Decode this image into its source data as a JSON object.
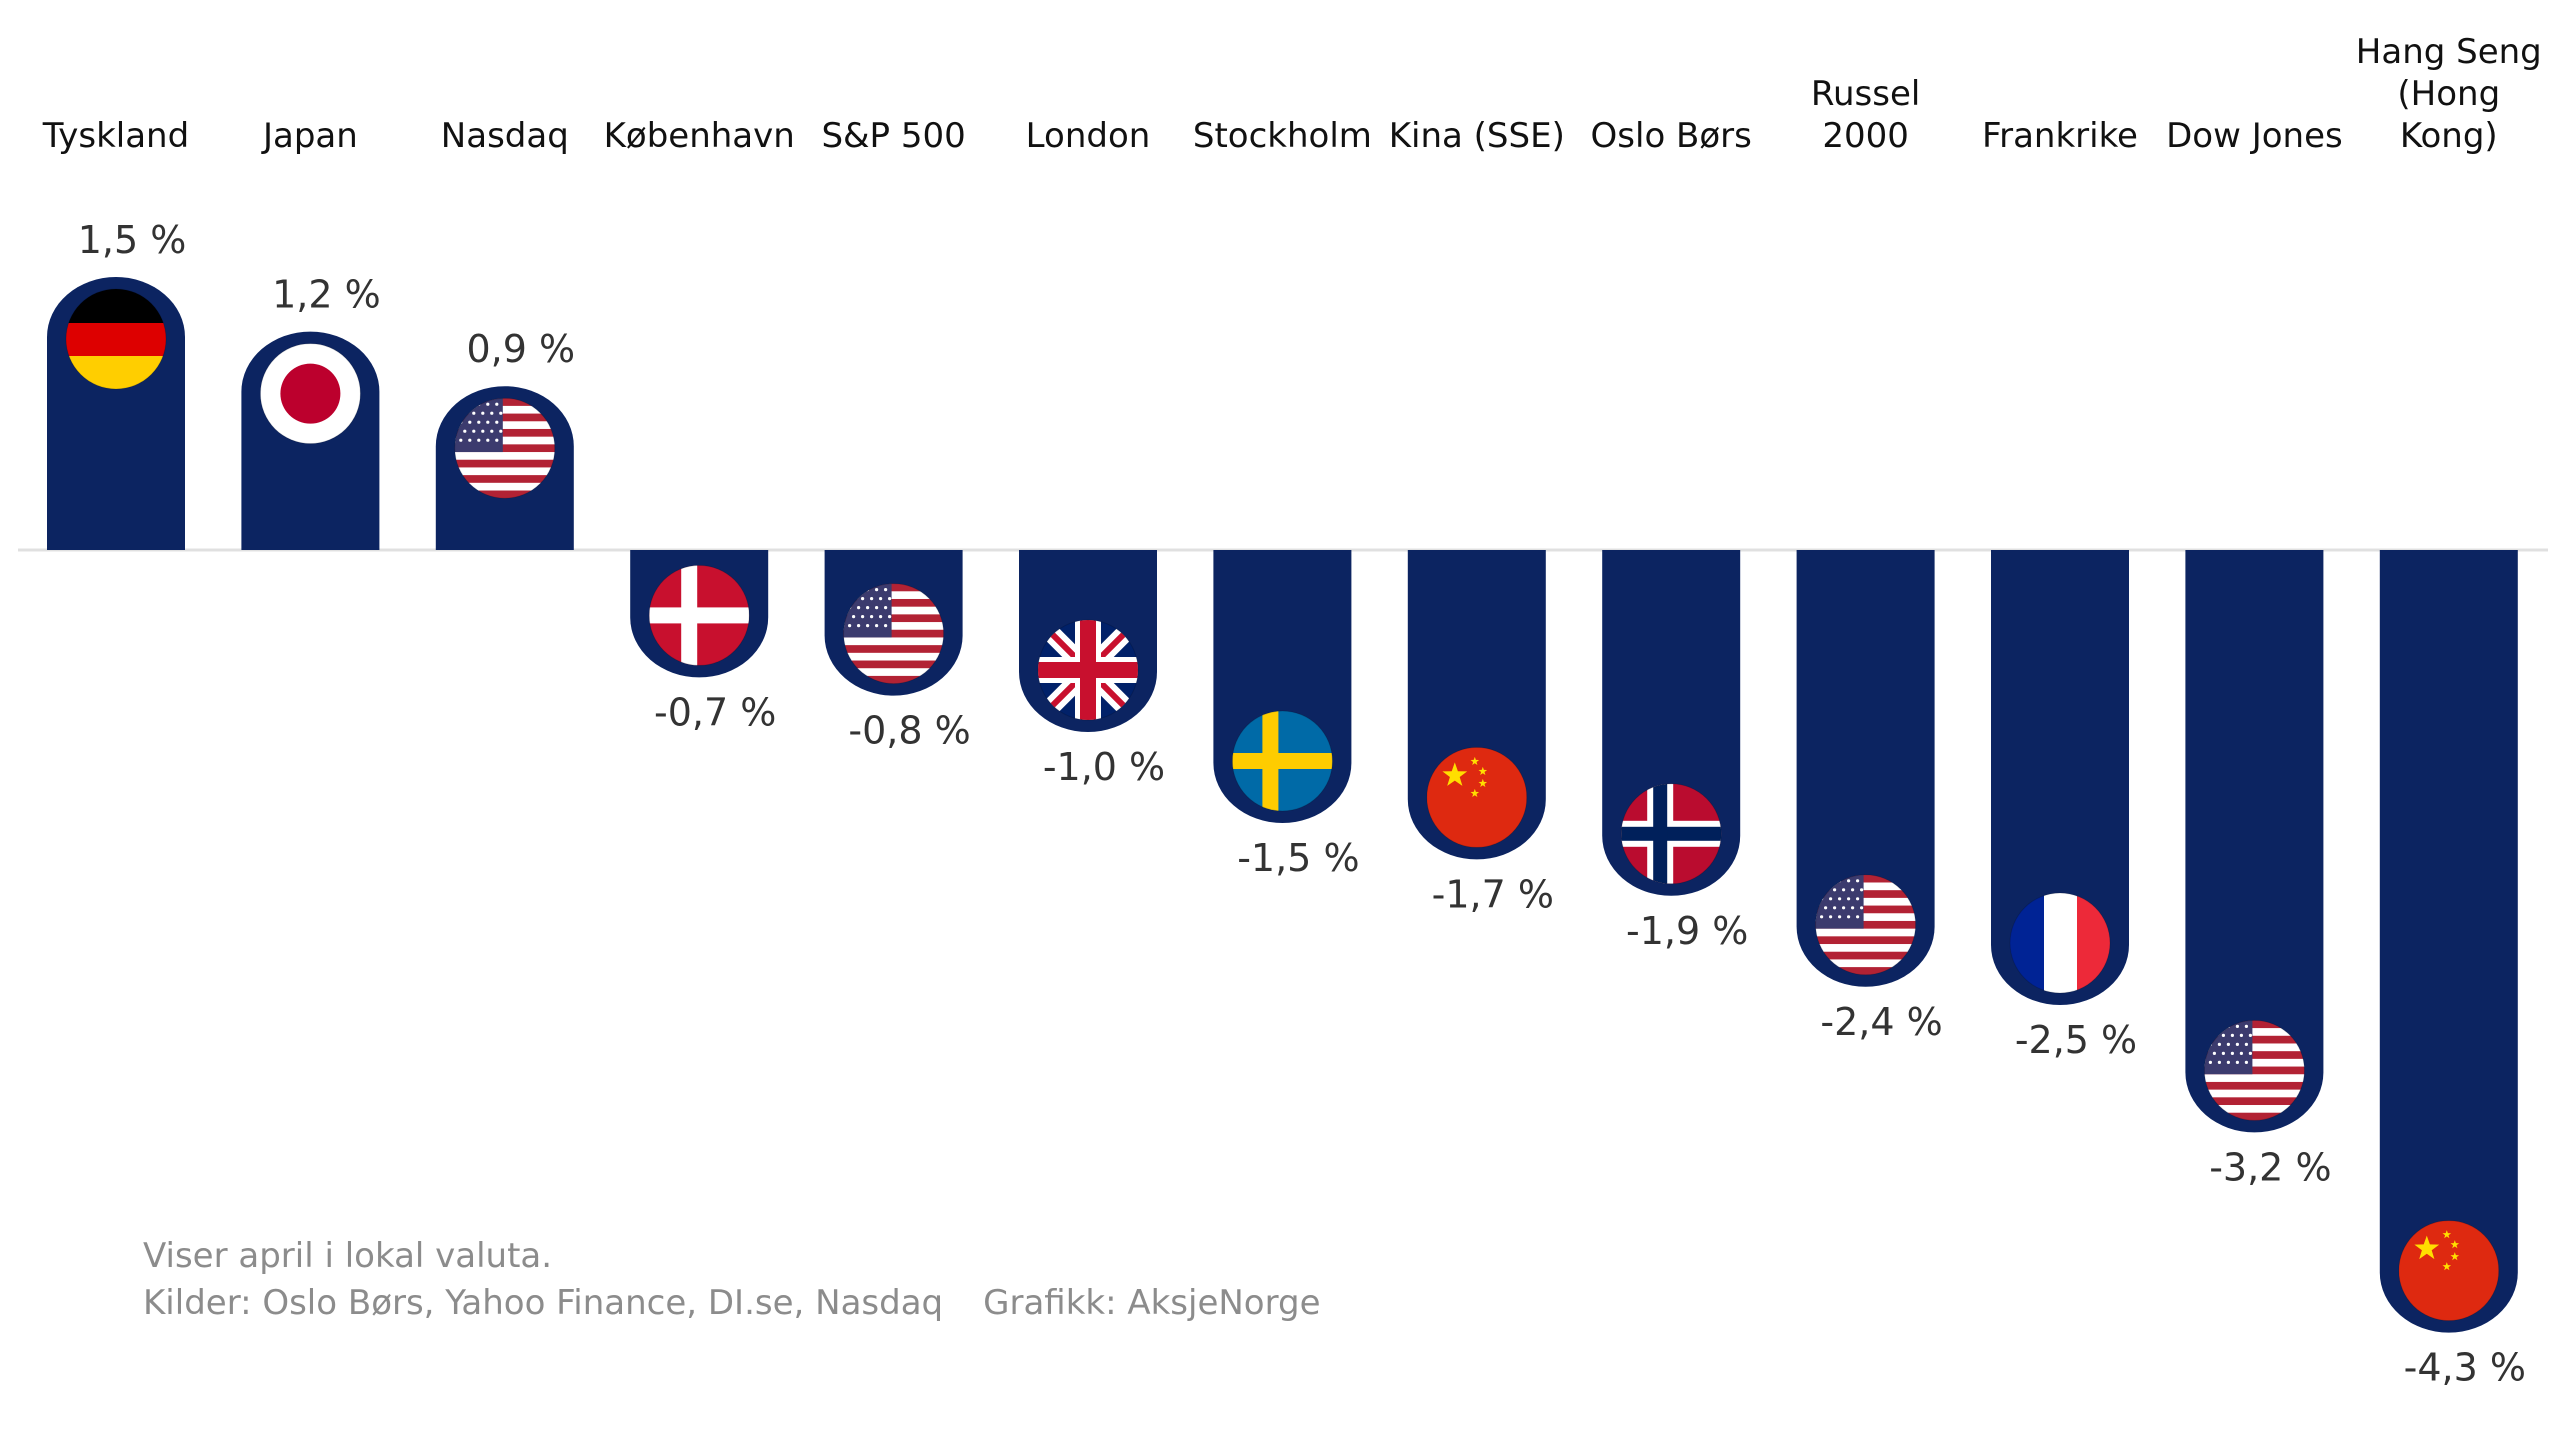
{
  "chart_data": {
    "type": "bar",
    "categories": [
      "Tyskland",
      "Japan",
      "Nasdaq",
      "København",
      "S&P 500",
      "London",
      "Stockholm",
      "Kina (SSE)",
      "Oslo Børs",
      "Russel 2000",
      "Frankrike",
      "Dow Jones",
      "Hang Seng (Hong Kong)"
    ],
    "values": [
      1.5,
      1.2,
      0.9,
      -0.7,
      -0.8,
      -1.0,
      -1.5,
      -1.7,
      -1.9,
      -2.4,
      -2.5,
      -3.2,
      -4.3
    ],
    "value_labels": [
      "1,5 %",
      "1,2 %",
      "0,9 %",
      "-0,7 %",
      "-0,8 %",
      "-1,0 %",
      "-1,5 %",
      "-1,7 %",
      "-1,9 %",
      "-2,4 %",
      "-2,5 %",
      "-3,2 %",
      "-4,3 %"
    ],
    "flags": [
      "germany-flag-icon",
      "japan-flag-icon",
      "usa-flag-icon",
      "denmark-flag-icon",
      "usa-flag-icon",
      "uk-flag-icon",
      "sweden-flag-icon",
      "china-flag-icon",
      "norway-flag-icon",
      "usa-flag-icon",
      "france-flag-icon",
      "usa-flag-icon",
      "china-flag-icon"
    ],
    "title": "",
    "xlabel": "",
    "ylabel": "",
    "grid": false,
    "colors": {
      "bar": "#0c2461",
      "zero_line": "#e0e0e0"
    }
  },
  "notes": {
    "line1": "Viser april i lokal valuta.",
    "sources": "Kilder: Oslo Børs, Yahoo Finance, DI.se, Nasdaq",
    "graphics": "Grafikk: AksjeNorge"
  }
}
